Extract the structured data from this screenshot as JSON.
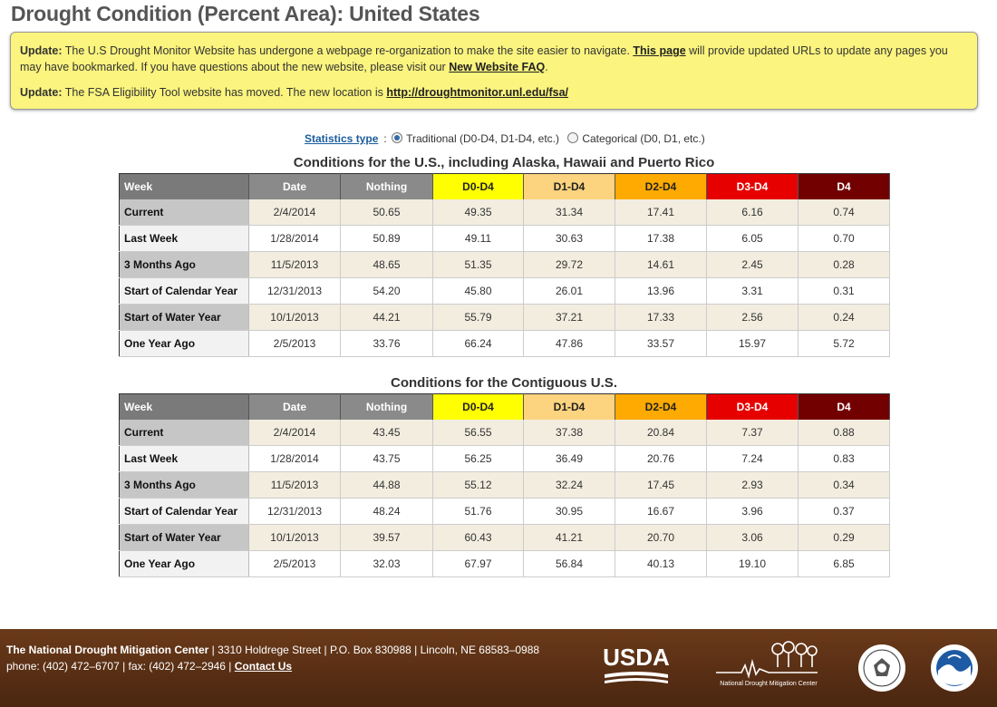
{
  "page_title": "Drought Condition (Percent Area): United States",
  "notice": {
    "update_label": "Update:",
    "p1_text_a": " The U.S Drought Monitor Website has undergone a webpage re-organization to make the site easier to navigate. ",
    "p1_link1": "This page",
    "p1_text_b": " will provide updated URLs to update any pages you may have bookmarked. If you have questions about the new website, please visit our ",
    "p1_link2": "New Website FAQ",
    "p1_text_c": ".",
    "p2_text": " The FSA Eligibility Tool website has moved. The new location is ",
    "p2_link": "http://droughtmonitor.unl.edu/fsa/"
  },
  "stats": {
    "label": "Statistics type",
    "colon": ":",
    "option_traditional": "Traditional (D0-D4, D1-D4, etc.)",
    "option_categorical": "Categorical (D0, D1, etc.)",
    "selected": "traditional"
  },
  "columns": [
    "Week",
    "Date",
    "Nothing",
    "D0-D4",
    "D1-D4",
    "D2-D4",
    "D3-D4",
    "D4"
  ],
  "category_colors": {
    "D0-D4": "#ffff00",
    "D1-D4": "#fcd37f",
    "D2-D4": "#ffaa00",
    "D3-D4": "#e60000",
    "D4": "#730000"
  },
  "tables": [
    {
      "title": "Conditions for the U.S., including Alaska, Hawaii and Puerto Rico",
      "rows": [
        {
          "week": "Current",
          "date": "2/4/2014",
          "nothing": "50.65",
          "d0": "49.35",
          "d1": "31.34",
          "d2": "17.41",
          "d3": "6.16",
          "d4": "0.74"
        },
        {
          "week": "Last Week",
          "date": "1/28/2014",
          "nothing": "50.89",
          "d0": "49.11",
          "d1": "30.63",
          "d2": "17.38",
          "d3": "6.05",
          "d4": "0.70"
        },
        {
          "week": "3 Months Ago",
          "date": "11/5/2013",
          "nothing": "48.65",
          "d0": "51.35",
          "d1": "29.72",
          "d2": "14.61",
          "d3": "2.45",
          "d4": "0.28"
        },
        {
          "week": "Start of Calendar Year",
          "date": "12/31/2013",
          "nothing": "54.20",
          "d0": "45.80",
          "d1": "26.01",
          "d2": "13.96",
          "d3": "3.31",
          "d4": "0.31"
        },
        {
          "week": "Start of Water Year",
          "date": "10/1/2013",
          "nothing": "44.21",
          "d0": "55.79",
          "d1": "37.21",
          "d2": "17.33",
          "d3": "2.56",
          "d4": "0.24"
        },
        {
          "week": "One Year Ago",
          "date": "2/5/2013",
          "nothing": "33.76",
          "d0": "66.24",
          "d1": "47.86",
          "d2": "33.57",
          "d3": "15.97",
          "d4": "5.72"
        }
      ]
    },
    {
      "title": "Conditions for the Contiguous U.S.",
      "rows": [
        {
          "week": "Current",
          "date": "2/4/2014",
          "nothing": "43.45",
          "d0": "56.55",
          "d1": "37.38",
          "d2": "20.84",
          "d3": "7.37",
          "d4": "0.88"
        },
        {
          "week": "Last Week",
          "date": "1/28/2014",
          "nothing": "43.75",
          "d0": "56.25",
          "d1": "36.49",
          "d2": "20.76",
          "d3": "7.24",
          "d4": "0.83"
        },
        {
          "week": "3 Months Ago",
          "date": "11/5/2013",
          "nothing": "44.88",
          "d0": "55.12",
          "d1": "32.24",
          "d2": "17.45",
          "d3": "2.93",
          "d4": "0.34"
        },
        {
          "week": "Start of Calendar Year",
          "date": "12/31/2013",
          "nothing": "48.24",
          "d0": "51.76",
          "d1": "30.95",
          "d2": "16.67",
          "d3": "3.96",
          "d4": "0.37"
        },
        {
          "week": "Start of Water Year",
          "date": "10/1/2013",
          "nothing": "39.57",
          "d0": "60.43",
          "d1": "41.21",
          "d2": "20.70",
          "d3": "3.06",
          "d4": "0.29"
        },
        {
          "week": "One Year Ago",
          "date": "2/5/2013",
          "nothing": "32.03",
          "d0": "67.97",
          "d1": "56.84",
          "d2": "40.13",
          "d3": "19.10",
          "d4": "6.85"
        }
      ]
    }
  ],
  "footer": {
    "org_name": "The National Drought Mitigation Center",
    "address": " | 3310 Holdrege Street | P.O. Box 830988 | Lincoln, NE 68583–0988",
    "phone": "phone: (402) 472–6707 | fax: (402) 472–2946 | ",
    "contact_link": "Contact Us",
    "logos": {
      "usda": "USDA",
      "ndmc": "National Drought Mitigation Center",
      "seal1_icon": "department-of-commerce-seal",
      "seal2_icon": "noaa-logo"
    }
  }
}
